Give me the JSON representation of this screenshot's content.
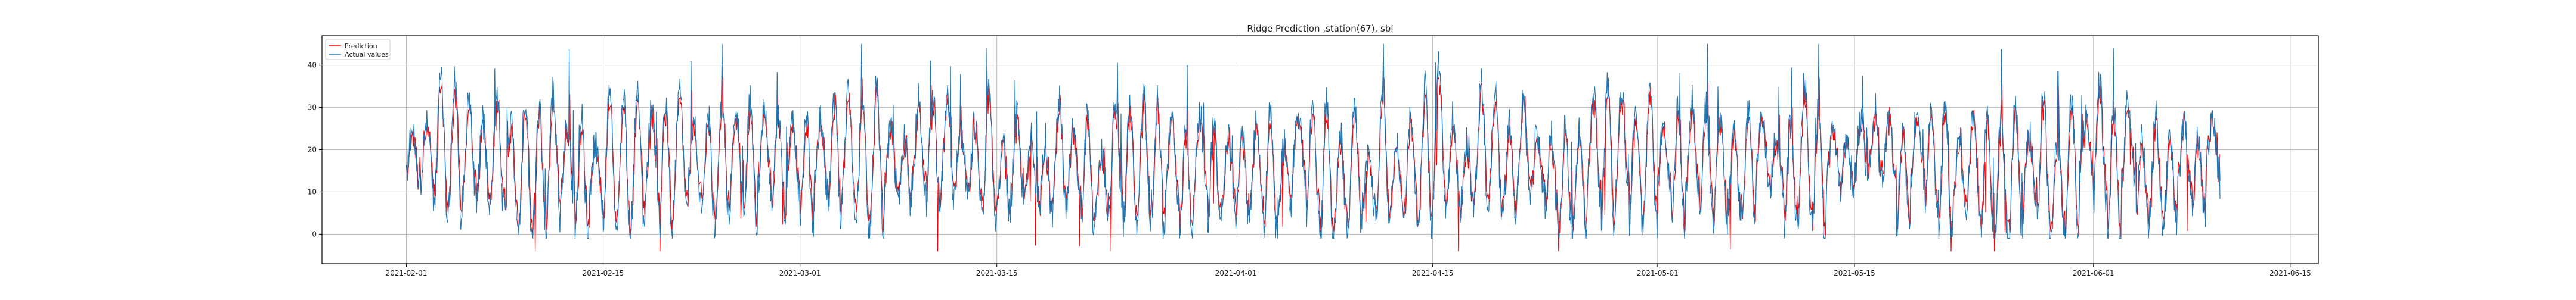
{
  "chart_data": {
    "type": "line",
    "title": "Ridge Prediction ,station(67), sbi",
    "xlabel": "",
    "ylabel": "",
    "x_ticks": [
      "2021-02-01",
      "2021-02-15",
      "2021-03-01",
      "2021-03-15",
      "2021-04-01",
      "2021-04-15",
      "2021-05-01",
      "2021-05-15",
      "2021-06-01",
      "2021-06-15"
    ],
    "x_range": [
      "2021-01-26",
      "2021-06-17"
    ],
    "x_data_range": [
      "2021-02-01",
      "2021-06-10"
    ],
    "y_ticks": [
      0,
      10,
      20,
      30,
      40
    ],
    "ylim": [
      -7,
      47
    ],
    "grid": true,
    "legend_position": "top-left",
    "series": [
      {
        "name": "Prediction",
        "color": "#ff0000",
        "y_min": -4,
        "y_max": 37
      },
      {
        "name": "Actual values",
        "color": "#1f77b4",
        "y_min": -1,
        "y_max": 45
      }
    ]
  }
}
